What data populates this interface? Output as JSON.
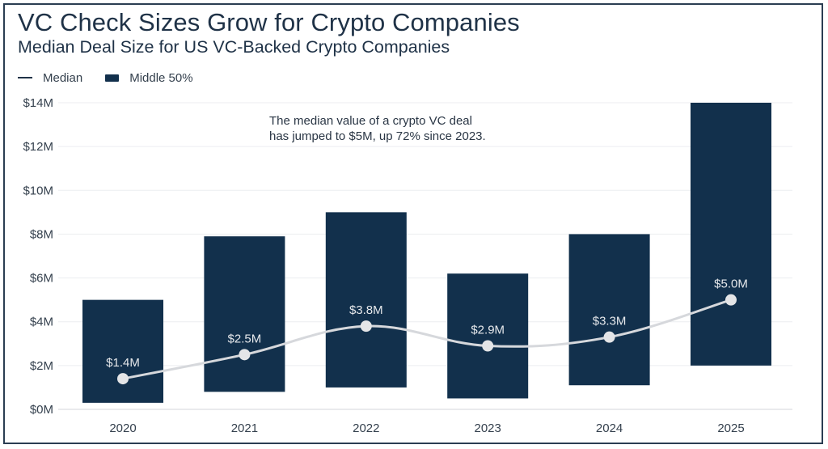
{
  "chart_data": {
    "type": "bar",
    "subtype": "floating-range-bar-with-line",
    "title": "VC Check Sizes Grow for Crypto Companies",
    "subtitle": "Median Deal Size for US VC-Backed Crypto Companies",
    "legend": {
      "placement": "top-left",
      "entries": [
        {
          "name": "Median",
          "symbol": "line"
        },
        {
          "name": "Middle 50%",
          "symbol": "box"
        }
      ]
    },
    "categories": [
      "2020",
      "2021",
      "2022",
      "2023",
      "2024",
      "2025"
    ],
    "series": [
      {
        "name": "Middle 50%",
        "type": "range-bar",
        "low": [
          0.3,
          0.8,
          1.0,
          0.5,
          1.1,
          2.0
        ],
        "high": [
          5.0,
          7.9,
          9.0,
          6.2,
          8.0,
          14.0
        ],
        "color": "#12304c"
      },
      {
        "name": "Median",
        "type": "line",
        "values": [
          1.4,
          2.5,
          3.8,
          2.9,
          3.3,
          5.0
        ],
        "data_labels": [
          "$1.4M",
          "$2.5M",
          "$3.8M",
          "$2.9M",
          "$3.3M",
          "$5.0M"
        ],
        "color": "#d6d8dc"
      }
    ],
    "xlabel": "",
    "ylabel": "",
    "ylim": [
      0,
      14
    ],
    "yticks": [
      0,
      2,
      4,
      6,
      8,
      10,
      12,
      14
    ],
    "ytick_labels": [
      "$0M",
      "$2M",
      "$4M",
      "$6M",
      "$8M",
      "$10M",
      "$12M",
      "$14M"
    ],
    "grid": true,
    "annotation": {
      "lines": [
        "The median value of a crypto VC deal",
        "has jumped to $5M, up 72% since 2023."
      ],
      "placement": "top-center"
    },
    "colors": {
      "bar": "#12304c",
      "median_line": "#d6d8dc",
      "median_marker": "#e4e5e7",
      "grid": "#eceef0",
      "frame": "#2a3d52"
    }
  }
}
